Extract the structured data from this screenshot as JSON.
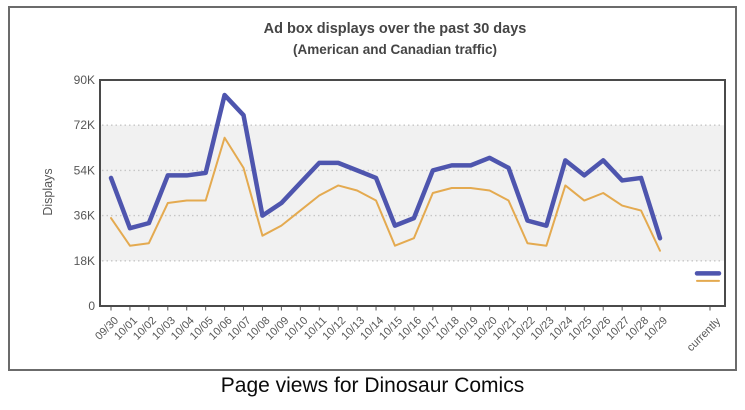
{
  "figure": {
    "caption": "Page views for Dinosaur Comics"
  },
  "chart_data": {
    "type": "line",
    "title": "Ad box displays over the past 30 days",
    "subtitle": "(American and Canadian traffic)",
    "ylabel": "Displays",
    "unit": "thousands of displays",
    "ylim": [
      0,
      90
    ],
    "y_ticks": [
      0,
      18,
      36,
      54,
      72,
      90
    ],
    "y_tick_labels": [
      "0",
      "18K",
      "36K",
      "54K",
      "72K",
      "90K"
    ],
    "grid_lines": [
      18,
      36,
      54,
      72
    ],
    "shaded_band": {
      "from": 18,
      "to": 72,
      "color": "#f1f1f1"
    },
    "legend": "none",
    "categories": [
      "09/30",
      "10/01",
      "10/02",
      "10/03",
      "10/04",
      "10/05",
      "10/06",
      "10/07",
      "10/08",
      "10/09",
      "10/10",
      "10/11",
      "10/12",
      "10/13",
      "10/14",
      "10/15",
      "10/16",
      "10/17",
      "10/18",
      "10/19",
      "10/20",
      "10/21",
      "10/22",
      "10/23",
      "10/24",
      "10/25",
      "10/26",
      "10/27",
      "10/28",
      "10/29"
    ],
    "current_category": "currently",
    "series": [
      {
        "id": "blue-line",
        "color": "#4e55ae",
        "stroke_width": 4.5,
        "values": [
          51,
          31,
          33,
          52,
          52,
          53,
          84,
          76,
          36,
          41,
          49,
          57,
          57,
          54,
          51,
          32,
          35,
          54,
          56,
          56,
          59,
          55,
          34,
          32,
          58,
          52,
          58,
          50,
          51,
          27
        ],
        "current_value": 13
      },
      {
        "id": "orange-line",
        "color": "#e4aa50",
        "stroke_width": 2,
        "values": [
          35,
          24,
          25,
          41,
          42,
          42,
          67,
          55,
          28,
          32,
          38,
          44,
          48,
          46,
          42,
          24,
          27,
          45,
          47,
          47,
          46,
          42,
          25,
          24,
          48,
          42,
          45,
          40,
          38,
          22
        ],
        "current_value": 10
      }
    ]
  }
}
